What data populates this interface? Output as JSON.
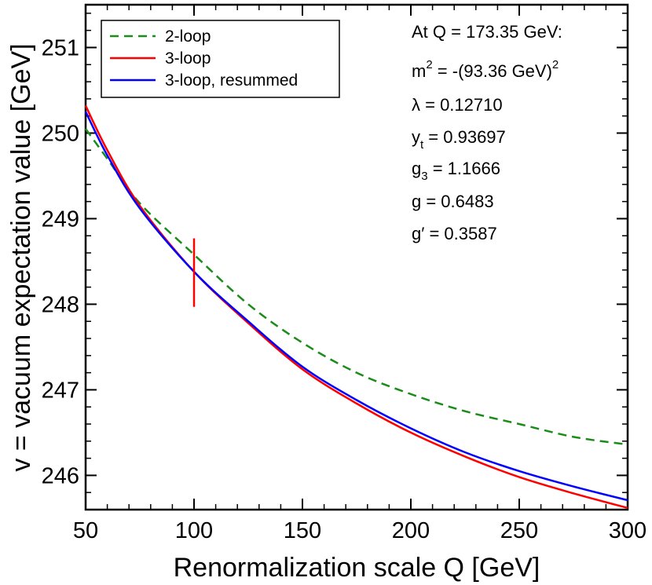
{
  "chart_data": {
    "type": "line",
    "title": "",
    "xlabel": "Renormalization scale Q  [GeV]",
    "ylabel": "v = vacuum expectation value  [GeV]",
    "xlim": [
      50,
      300
    ],
    "ylim": [
      245.6,
      251.5
    ],
    "xticks": [
      50,
      100,
      150,
      200,
      250,
      300
    ],
    "yticks": [
      246,
      247,
      248,
      249,
      250,
      251
    ],
    "series": [
      {
        "name": "2-loop",
        "color": "#1a8c1a",
        "dash": "dashed",
        "x": [
          50,
          60,
          75,
          100,
          125,
          150,
          175,
          200,
          225,
          250,
          275,
          300
        ],
        "y": [
          250.05,
          249.7,
          249.18,
          248.58,
          248.0,
          247.55,
          247.2,
          246.95,
          246.75,
          246.6,
          246.45,
          246.36
        ]
      },
      {
        "name": "3-loop",
        "color": "#ff0000",
        "dash": "solid",
        "x": [
          50,
          60,
          75,
          100,
          125,
          150,
          175,
          200,
          225,
          250,
          275,
          300
        ],
        "y": [
          250.32,
          249.8,
          249.15,
          248.38,
          247.78,
          247.24,
          246.84,
          246.5,
          246.22,
          245.98,
          245.79,
          245.62
        ]
      },
      {
        "name": "3-loop, resummed",
        "color": "#0000ff",
        "dash": "solid",
        "x": [
          50,
          60,
          75,
          100,
          125,
          150,
          175,
          200,
          225,
          250,
          275,
          300
        ],
        "y": [
          250.25,
          249.74,
          249.12,
          248.38,
          247.8,
          247.27,
          246.88,
          246.55,
          246.27,
          246.05,
          245.87,
          245.71
        ]
      }
    ],
    "marker": {
      "x": 100,
      "y_low": 247.97,
      "y_high": 248.77,
      "color": "#ff0000"
    },
    "legend": {
      "position": "top-left"
    },
    "annotations": [
      "At Q = 173.35 GeV:",
      "λ = 0.12710",
      "g = 0.6483",
      "g′ = 0.3587"
    ],
    "annotation_m2": {
      "base": "m",
      "sup1": "2",
      "rest": " = -(93.36 GeV)",
      "sup2": "2"
    },
    "annotation_yt": {
      "base": "y",
      "sub": "t",
      "rest": " = 0.93697"
    },
    "annotation_g3": {
      "base": "g",
      "sub": "3",
      "rest": " = 1.1666"
    }
  }
}
